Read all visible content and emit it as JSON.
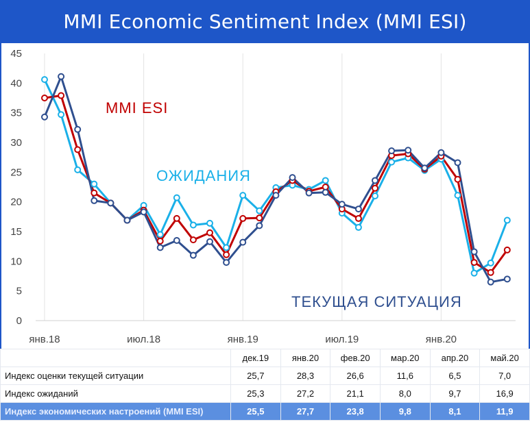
{
  "title": "MMI Economic Sentiment Index (MMI ESI)",
  "chart_data": {
    "type": "line",
    "title": "MMI Economic Sentiment Index (MMI ESI)",
    "ylim": [
      0,
      45
    ],
    "yticks": [
      0,
      5,
      10,
      15,
      20,
      25,
      30,
      35,
      40,
      45
    ],
    "grid": "vertical",
    "x": [
      "янв.18",
      "фев.18",
      "мар.18",
      "апр.18",
      "май.18",
      "июн.18",
      "июл.18",
      "авг.18",
      "сен.18",
      "окт.18",
      "ноя.18",
      "дек.18",
      "янв.19",
      "фев.19",
      "мар.19",
      "апр.19",
      "май.19",
      "июн.19",
      "июл.19",
      "авг.19",
      "сен.19",
      "окт.19",
      "ноя.19",
      "дек.19",
      "янв.20",
      "фев.20",
      "мар.20",
      "апр.20",
      "май.20"
    ],
    "xtick_labels": [
      {
        "label": "янв.18",
        "index": 0
      },
      {
        "label": "июл.18",
        "index": 6
      },
      {
        "label": "янв.19",
        "index": 12
      },
      {
        "label": "июл.19",
        "index": 18
      },
      {
        "label": "янв.20",
        "index": 24
      }
    ],
    "series": [
      {
        "name": "ОЖИДАНИЯ",
        "color": "#1ab0e8",
        "values": [
          40.6,
          34.7,
          25.4,
          23.0,
          19.8,
          16.9,
          19.4,
          14.5,
          20.7,
          16.1,
          16.4,
          12.3,
          21.1,
          18.5,
          22.4,
          22.8,
          22.1,
          23.6,
          18.1,
          15.7,
          21.0,
          26.7,
          27.4,
          25.3,
          27.2,
          21.1,
          8.0,
          9.7,
          16.9
        ],
        "annotation": "ОЖИДАНИЯ"
      },
      {
        "name": "MMI ESI",
        "color": "#c00000",
        "values": [
          37.5,
          37.9,
          28.8,
          21.5,
          19.8,
          16.9,
          18.6,
          13.4,
          17.2,
          13.6,
          14.8,
          11.1,
          17.2,
          17.3,
          21.7,
          23.6,
          21.8,
          22.5,
          18.8,
          17.2,
          22.3,
          27.8,
          28.1,
          25.5,
          27.7,
          23.8,
          9.8,
          8.1,
          11.9
        ],
        "annotation": "MMI ESI"
      },
      {
        "name": "ТЕКУЩАЯ СИТУАЦИЯ",
        "color": "#2f4f8f",
        "values": [
          34.3,
          41.1,
          32.2,
          20.2,
          19.8,
          16.9,
          18.3,
          12.3,
          13.5,
          11.0,
          13.3,
          9.8,
          13.2,
          16.0,
          21.1,
          24.1,
          21.5,
          21.6,
          19.6,
          18.8,
          23.6,
          28.6,
          28.7,
          25.7,
          28.3,
          26.6,
          11.6,
          6.5,
          7.0
        ],
        "annotation": "ТЕКУЩАЯ СИТУАЦИЯ"
      }
    ]
  },
  "table": {
    "headers": [
      "",
      "дек.19",
      "янв.20",
      "фев.20",
      "мар.20",
      "апр.20",
      "май.20"
    ],
    "rows": [
      {
        "label": "Индекс оценки текущей ситуации",
        "values": [
          "25,7",
          "28,3",
          "26,6",
          "11,6",
          "6,5",
          "7,0"
        ]
      },
      {
        "label": "Индекс ожиданий",
        "values": [
          "25,3",
          "27,2",
          "21,1",
          "8,0",
          "9,7",
          "16,9"
        ]
      },
      {
        "label": "Индекс экономических настроений (MMI ESI)",
        "values": [
          "25,5",
          "27,7",
          "23,8",
          "9,8",
          "8,1",
          "11,9"
        ]
      }
    ]
  }
}
